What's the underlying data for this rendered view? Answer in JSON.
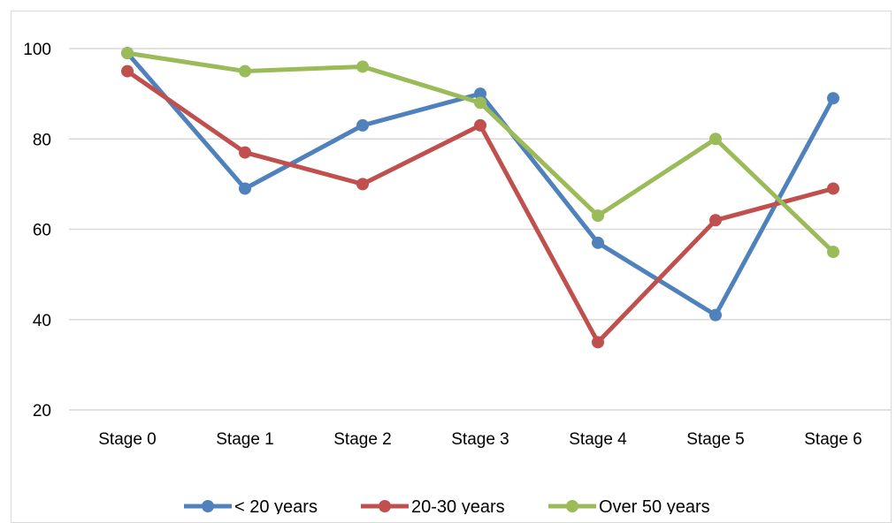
{
  "chart_data": {
    "type": "line",
    "categories": [
      "Stage 0",
      "Stage 1",
      "Stage 2",
      "Stage 3",
      "Stage 4",
      "Stage 5",
      "Stage 6"
    ],
    "series": [
      {
        "name": "< 20 years",
        "color": "#4f81bd",
        "values": [
          99,
          69,
          83,
          90,
          57,
          41,
          89
        ]
      },
      {
        "name": "20-30 years",
        "color": "#c0504d",
        "values": [
          95,
          77,
          70,
          83,
          35,
          62,
          69
        ]
      },
      {
        "name": "Over 50 years",
        "color": "#9bbb59",
        "values": [
          99,
          95,
          96,
          88,
          63,
          80,
          55
        ]
      }
    ],
    "ylim": [
      20,
      100
    ],
    "yticks": [
      "20",
      "40",
      "60",
      "80",
      "100"
    ],
    "grid": true,
    "legend": "bottom",
    "gridline_color": "#d9d9d9"
  }
}
